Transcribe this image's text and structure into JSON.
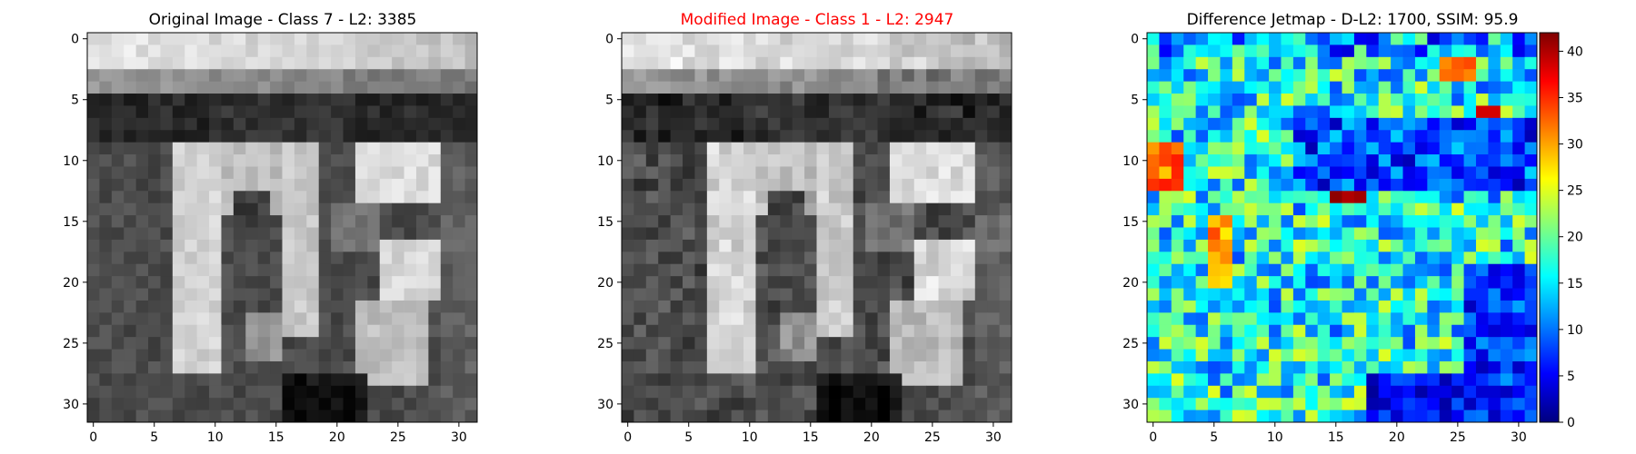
{
  "chart_data": [
    {
      "type": "heatmap",
      "title": "Original Image - Class 7 - L2: 3385",
      "title_color": "#000000",
      "colormap": "gray",
      "image_size": [
        32,
        32
      ],
      "x_ticks": [
        "0",
        "5",
        "10",
        "15",
        "20",
        "25",
        "30"
      ],
      "y_ticks": [
        "0",
        "5",
        "10",
        "15",
        "20",
        "25",
        "30"
      ],
      "xlim": [
        -0.5,
        31.5
      ],
      "ylim": [
        31.5,
        -0.5
      ],
      "content": "grayscale 32x32 image of a bright rounded glyph on a dark background, bright band across the top rows"
    },
    {
      "type": "heatmap",
      "title": "Modified Image - Class 1 - L2: 2947",
      "title_color": "#ff0000",
      "colormap": "gray",
      "image_size": [
        32,
        32
      ],
      "x_ticks": [
        "0",
        "5",
        "10",
        "15",
        "20",
        "25",
        "30"
      ],
      "y_ticks": [
        "0",
        "5",
        "10",
        "15",
        "20",
        "25",
        "30"
      ],
      "xlim": [
        -0.5,
        31.5
      ],
      "ylim": [
        31.5,
        -0.5
      ],
      "content": "slightly perturbed version of the original image"
    },
    {
      "type": "heatmap",
      "title": "Difference Jetmap - D-L2: 1700, SSIM: 95.9",
      "title_color": "#000000",
      "colormap": "jet",
      "image_size": [
        32,
        32
      ],
      "x_ticks": [
        "0",
        "5",
        "10",
        "15",
        "20",
        "25",
        "30"
      ],
      "y_ticks": [
        "0",
        "5",
        "10",
        "15",
        "20",
        "25",
        "30"
      ],
      "xlim": [
        -0.5,
        31.5
      ],
      "ylim": [
        31.5,
        -0.5
      ],
      "colorbar": {
        "range": [
          0,
          42
        ],
        "ticks": [
          0,
          5,
          10,
          15,
          20,
          25,
          30,
          35,
          40
        ],
        "tick_labels": [
          "0",
          "5",
          "10",
          "15",
          "20",
          "25",
          "30",
          "35",
          "40"
        ]
      },
      "content": "per-pixel absolute difference, mostly 10-25 with hotspots up to about 42 near rows 6 and 13"
    }
  ]
}
